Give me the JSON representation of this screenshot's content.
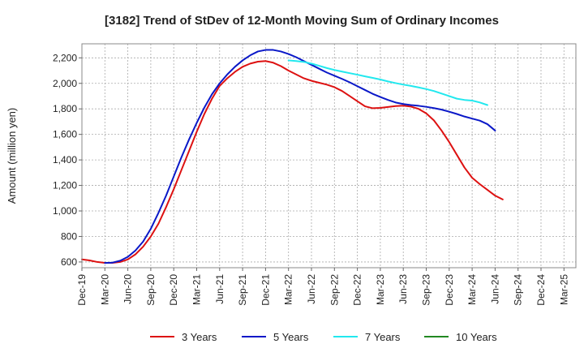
{
  "chart_data": {
    "type": "line",
    "title": "[3182]  Trend of StDev of 12-Month Moving Sum of Ordinary Incomes",
    "xlabel": "",
    "ylabel": "Amount (million yen)",
    "ylim": [
      555,
      2310
    ],
    "y_ticks": [
      600,
      800,
      1000,
      1200,
      1400,
      1600,
      1800,
      2000,
      2200
    ],
    "y_tick_labels": [
      "600",
      "800",
      "1,000",
      "1,200",
      "1,400",
      "1,600",
      "1,800",
      "2,000",
      "2,200"
    ],
    "x_ticks": [
      "Dec-19",
      "Mar-20",
      "Jun-20",
      "Sep-20",
      "Dec-20",
      "Mar-21",
      "Jun-21",
      "Sep-21",
      "Dec-21",
      "Mar-22",
      "Jun-22",
      "Sep-22",
      "Dec-22",
      "Mar-23",
      "Jun-23",
      "Sep-23",
      "Dec-23",
      "Mar-24",
      "Jun-24",
      "Sep-24",
      "Dec-24",
      "Mar-25"
    ],
    "x_start": "Dec-19",
    "x_step_months": 1,
    "grid": true,
    "legend_position": "bottom",
    "series": [
      {
        "name": "3 Years",
        "color": "#dd1111",
        "start_index": 0,
        "values": [
          620,
          612,
          600,
          593,
          593,
          600,
          620,
          660,
          720,
          800,
          900,
          1030,
          1170,
          1320,
          1470,
          1620,
          1760,
          1880,
          1980,
          2040,
          2090,
          2130,
          2155,
          2170,
          2175,
          2162,
          2135,
          2100,
          2070,
          2040,
          2020,
          2005,
          1990,
          1970,
          1940,
          1900,
          1860,
          1820,
          1805,
          1808,
          1815,
          1822,
          1825,
          1818,
          1800,
          1765,
          1710,
          1630,
          1540,
          1440,
          1340,
          1260,
          1210,
          1165,
          1120,
          1090
        ]
      },
      {
        "name": "5 Years",
        "color": "#0a18c8",
        "start_index": 3,
        "values": [
          592,
          595,
          610,
          640,
          690,
          760,
          860,
          985,
          1120,
          1270,
          1420,
          1560,
          1690,
          1810,
          1915,
          2000,
          2070,
          2130,
          2180,
          2220,
          2250,
          2262,
          2262,
          2250,
          2230,
          2205,
          2175,
          2145,
          2115,
          2085,
          2060,
          2035,
          2008,
          1978,
          1948,
          1918,
          1893,
          1870,
          1850,
          1838,
          1830,
          1824,
          1816,
          1806,
          1794,
          1778,
          1760,
          1740,
          1724,
          1708,
          1680,
          1630
        ]
      },
      {
        "name": "7 Years",
        "color": "#22e8ee",
        "start_index": 27,
        "values": [
          2180,
          2175,
          2168,
          2155,
          2138,
          2120,
          2105,
          2092,
          2080,
          2068,
          2055,
          2043,
          2030,
          2015,
          2002,
          1990,
          1980,
          1968,
          1955,
          1940,
          1920,
          1900,
          1880,
          1870,
          1865,
          1850,
          1830
        ]
      },
      {
        "name": "10 Years",
        "color": "#228822",
        "start_index": 0,
        "values": []
      }
    ]
  }
}
